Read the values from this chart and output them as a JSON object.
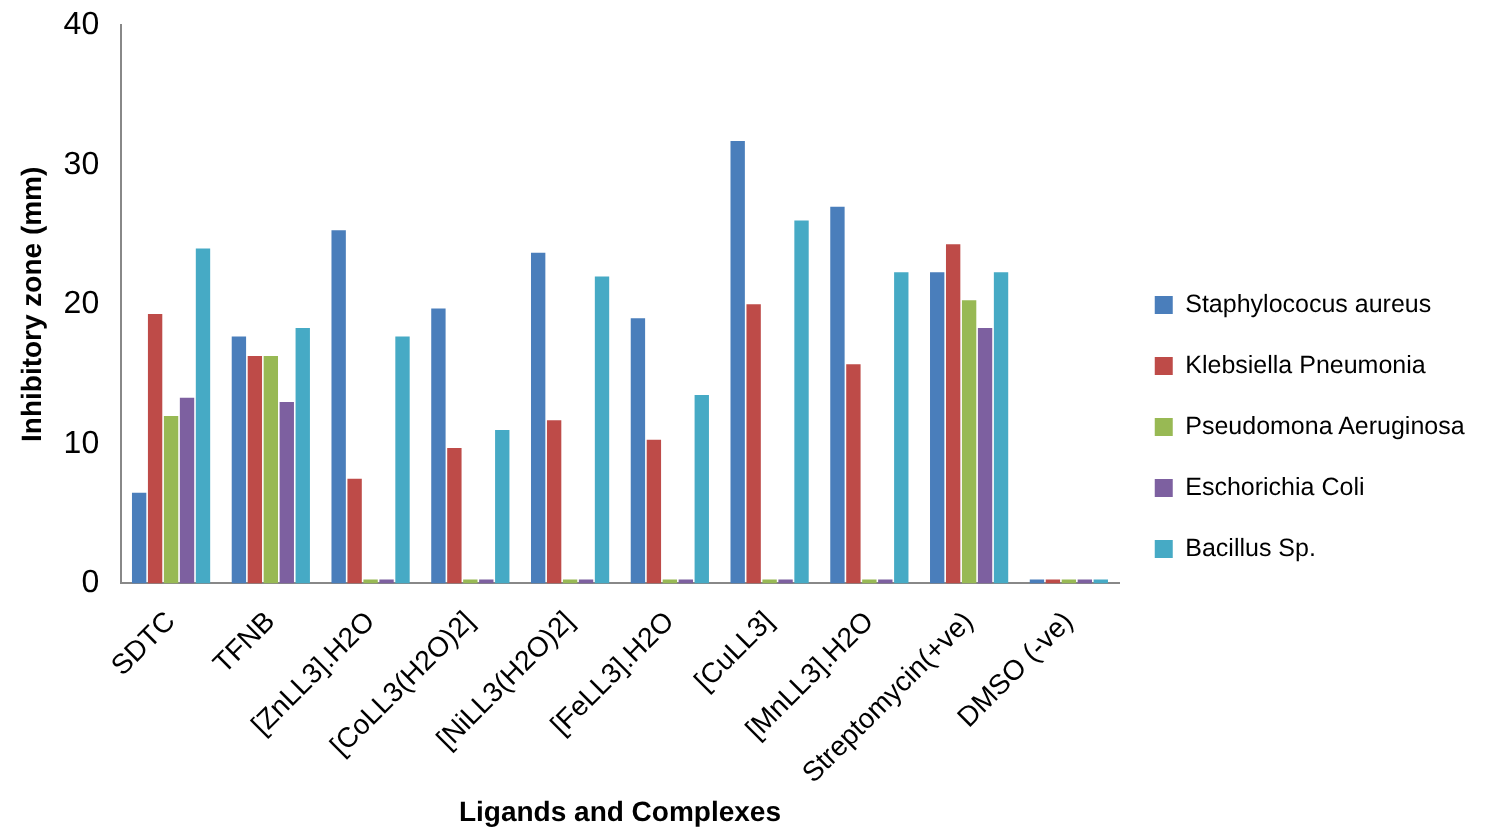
{
  "chart_data": {
    "type": "bar",
    "xlabel": "Ligands and Complexes",
    "ylabel": "Inhibitory zone (mm)",
    "categories": [
      "SDTC",
      "TFNB",
      "[ZnLL3].H2O",
      "[CoLL3(H2O)2]",
      "[NiLL3(H2O)2]",
      "[FeLL3].H2O",
      "[CuLL3]",
      "[MnLL3].H2O",
      "Streptomycin(+ve)",
      "DMSO (-ve)"
    ],
    "series": [
      {
        "name": "Staphylococus aureus",
        "color": "#4a7ebb",
        "values": [
          6.5,
          17.7,
          25.3,
          19.7,
          23.7,
          19,
          31.7,
          27,
          22.3,
          0
        ]
      },
      {
        "name": "Klebsiella Pneumonia",
        "color": "#be4b48",
        "values": [
          19.3,
          16.3,
          7.5,
          9.7,
          11.7,
          10.3,
          20,
          15.7,
          24.3,
          0
        ]
      },
      {
        "name": "Pseudomona Aeruginosa",
        "color": "#98b954",
        "values": [
          12,
          16.3,
          0,
          0,
          0,
          0,
          0,
          0,
          20.3,
          0
        ]
      },
      {
        "name": "Eschorichia Coli",
        "color": "#7d60a0",
        "values": [
          13.3,
          13,
          0,
          0,
          0,
          0,
          0,
          0,
          18.3,
          0
        ]
      },
      {
        "name": "Bacillus Sp.",
        "color": "#46aac5",
        "values": [
          24,
          18.3,
          17.7,
          11,
          22,
          13.5,
          26,
          22.3,
          22.3,
          0
        ]
      }
    ],
    "ylim": [
      0,
      40
    ],
    "yticks": [
      0,
      10,
      20,
      30,
      40
    ],
    "grid": false,
    "legend": "right"
  }
}
